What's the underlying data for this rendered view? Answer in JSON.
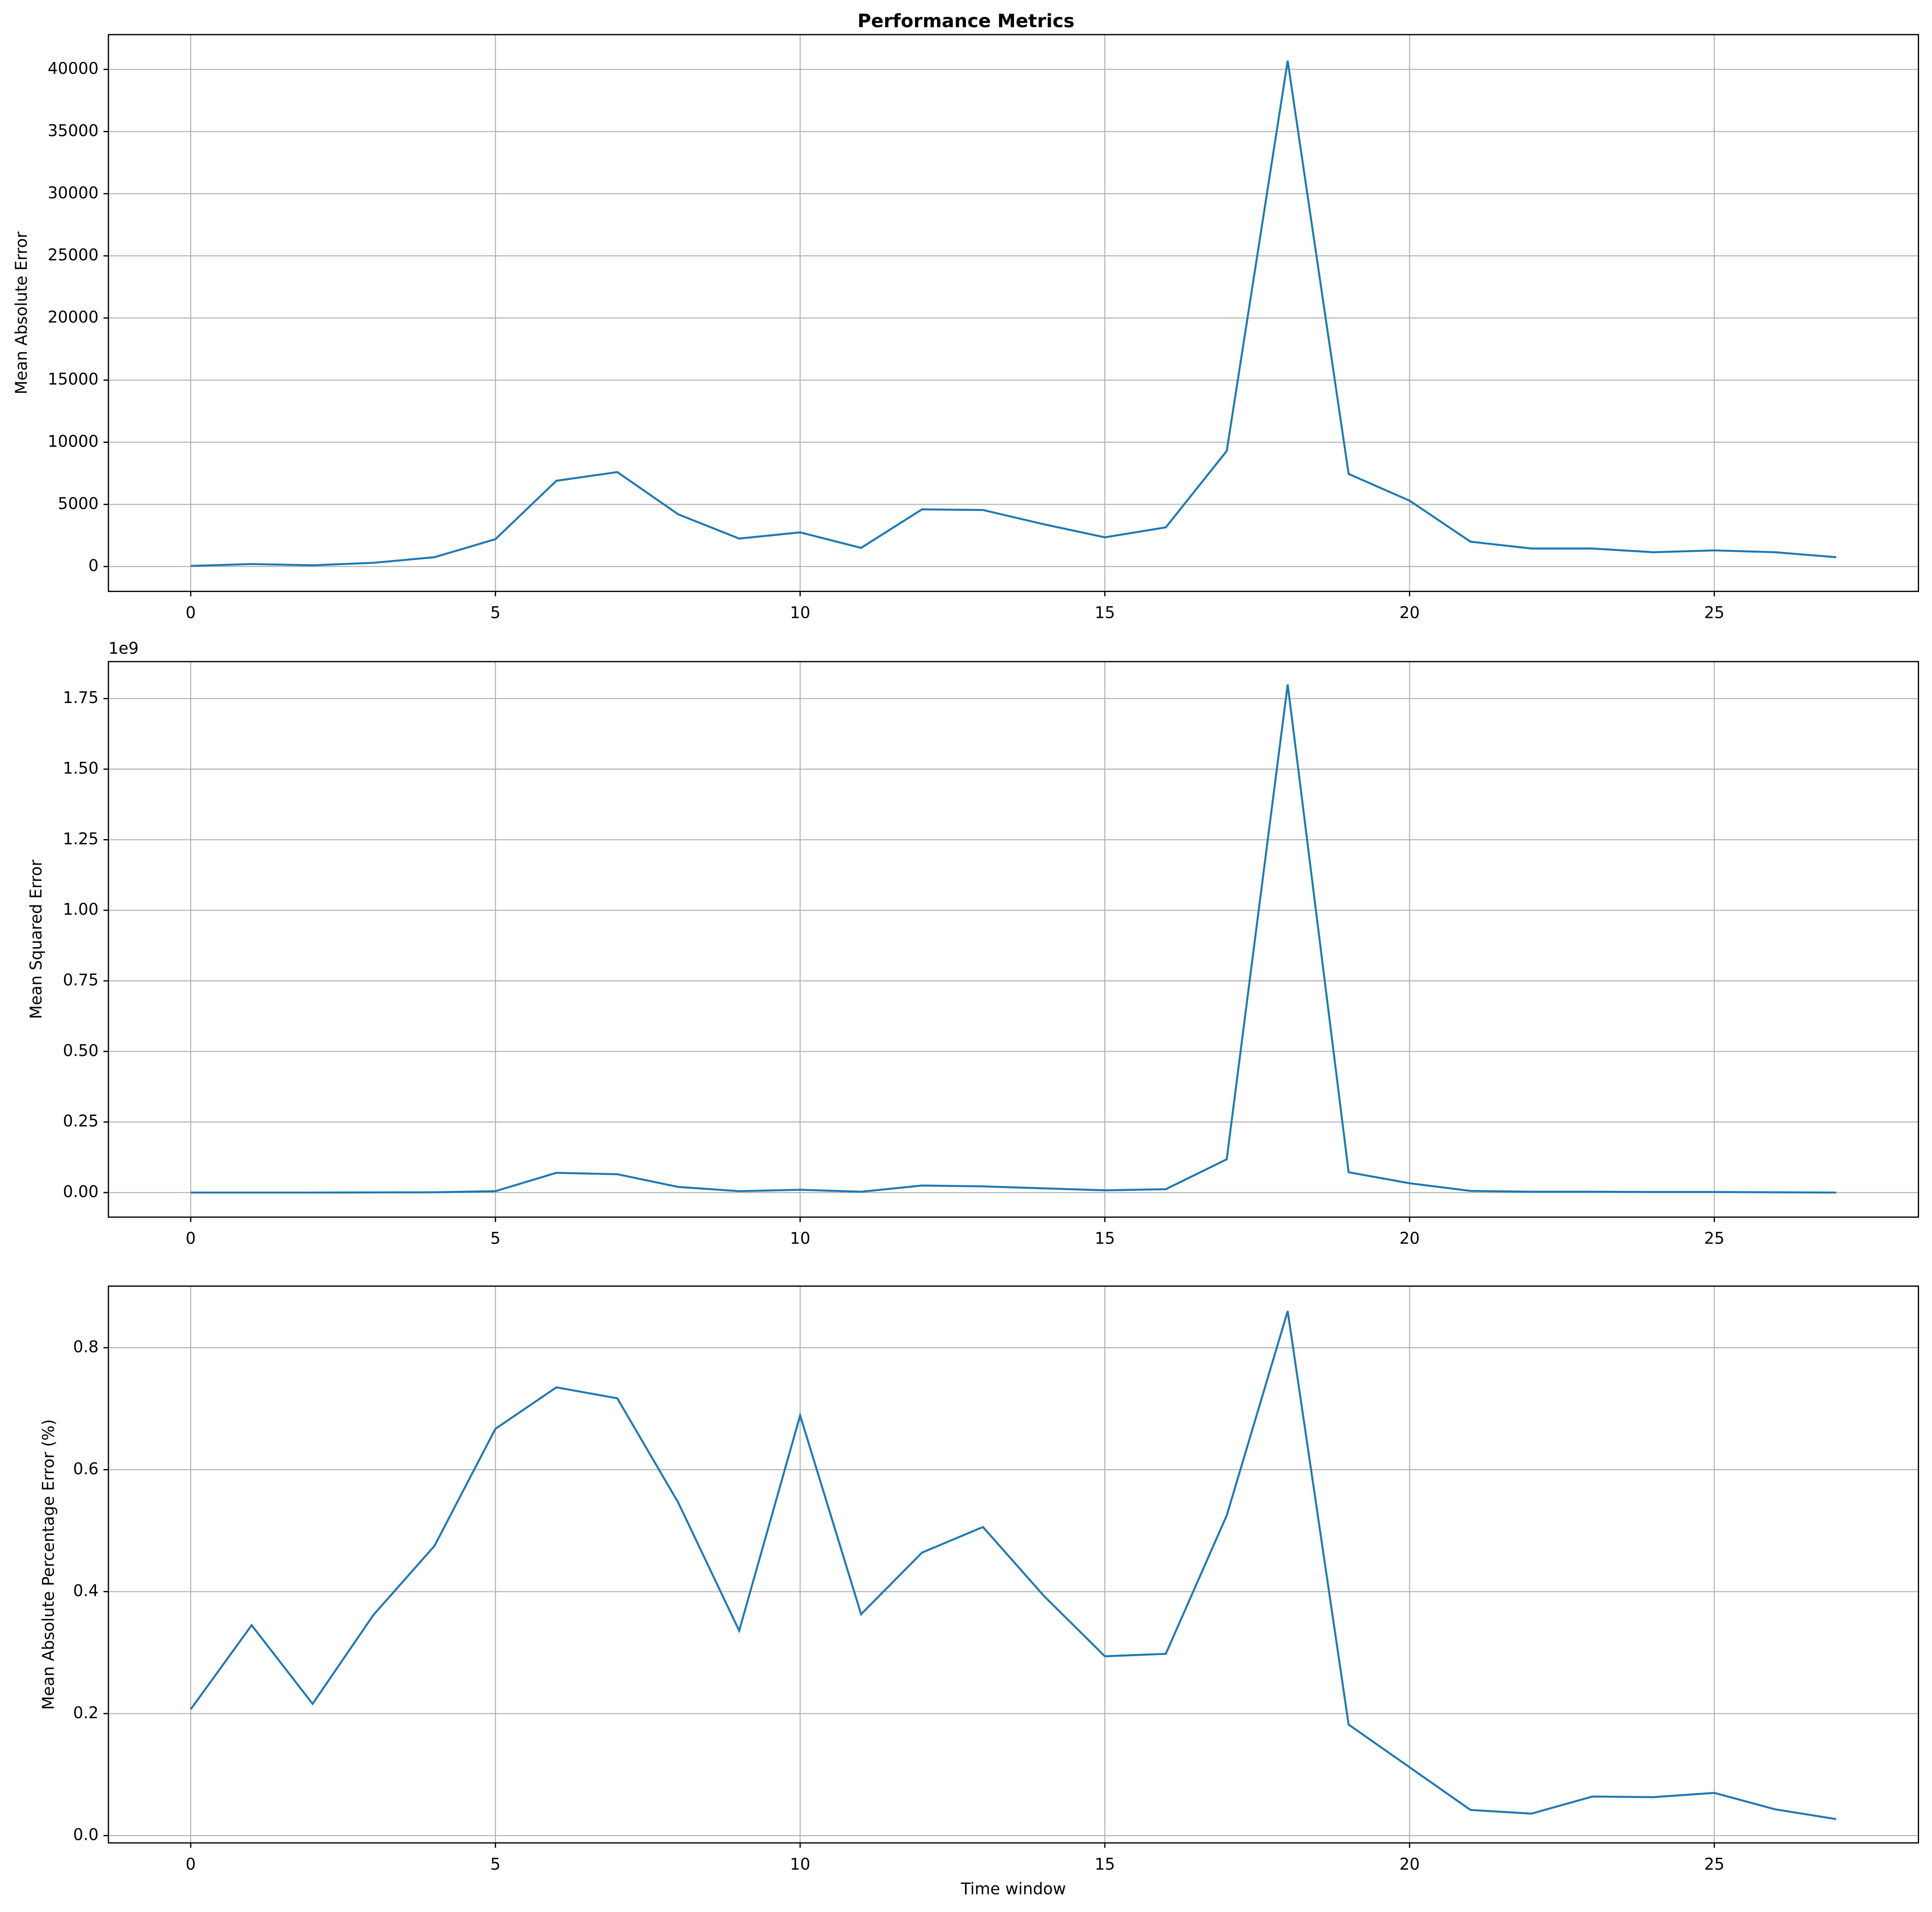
{
  "title": "Performance Metrics",
  "chart_data": [
    {
      "type": "line",
      "ylabel": "Mean Absolute Error",
      "x": [
        0,
        1,
        2,
        3,
        4,
        5,
        6,
        7,
        8,
        9,
        10,
        11,
        12,
        13,
        14,
        15,
        16,
        17,
        18,
        19,
        20,
        21,
        22,
        23,
        24,
        25,
        26,
        27
      ],
      "series": [
        {
          "color": "#1f77b4",
          "values": [
            50,
            200,
            100,
            300,
            750,
            2200,
            6900,
            7600,
            4200,
            2250,
            2750,
            1500,
            4600,
            4550,
            3400,
            2350,
            3150,
            9300,
            40700,
            7450,
            5300,
            2000,
            1450,
            1450,
            1150,
            1300,
            1150,
            750
          ]
        }
      ],
      "xlim": [
        -1.35,
        28.35
      ],
      "xticks": [
        0,
        5,
        10,
        15,
        20,
        25
      ],
      "ylim": [
        -2000,
        42800
      ],
      "yticks": [
        0,
        5000,
        10000,
        15000,
        20000,
        25000,
        30000,
        35000,
        40000
      ],
      "grid": true
    },
    {
      "type": "line",
      "ylabel": "Mean Squared Error",
      "offset_label": "1e9",
      "x": [
        0,
        1,
        2,
        3,
        4,
        5,
        6,
        7,
        8,
        9,
        10,
        11,
        12,
        13,
        14,
        15,
        16,
        17,
        18,
        19,
        20,
        21,
        22,
        23,
        24,
        25,
        26,
        27
      ],
      "series": [
        {
          "color": "#1f77b4",
          "values": [
            0,
            0,
            0,
            0.0005,
            0.001,
            0.005,
            0.07,
            0.065,
            0.02,
            0.005,
            0.01,
            0.003,
            0.025,
            0.022,
            0.015,
            0.008,
            0.012,
            0.118,
            1.8,
            0.072,
            0.033,
            0.006,
            0.003,
            0.003,
            0.002,
            0.002,
            0.001,
            0
          ]
        }
      ],
      "xlim": [
        -1.35,
        28.35
      ],
      "xticks": [
        0,
        5,
        10,
        15,
        20,
        25
      ],
      "ylim": [
        -0.087,
        1.881
      ],
      "yticks": [
        {
          "value": 0,
          "label": "0.00"
        },
        {
          "value": 0.25,
          "label": "0.25"
        },
        {
          "value": 0.5,
          "label": "0.50"
        },
        {
          "value": 0.75,
          "label": "0.75"
        },
        {
          "value": 1,
          "label": "1.00"
        },
        {
          "value": 1.25,
          "label": "1.25"
        },
        {
          "value": 1.5,
          "label": "1.50"
        },
        {
          "value": 1.75,
          "label": "1.75"
        }
      ],
      "grid": true
    },
    {
      "type": "line",
      "ylabel": "Mean Absolute Percentage Error (%)",
      "xlabel": "Time window",
      "x": [
        0,
        1,
        2,
        3,
        4,
        5,
        6,
        7,
        8,
        9,
        10,
        11,
        12,
        13,
        14,
        15,
        16,
        17,
        18,
        19,
        20,
        21,
        22,
        23,
        24,
        25,
        26,
        27
      ],
      "series": [
        {
          "color": "#1f77b4",
          "values": [
            0.207,
            0.345,
            0.216,
            0.362,
            0.475,
            0.667,
            0.735,
            0.717,
            0.546,
            0.336,
            0.689,
            0.363,
            0.464,
            0.506,
            0.393,
            0.294,
            0.298,
            0.525,
            0.86,
            0.182,
            0.112,
            0.042,
            0.036,
            0.064,
            0.063,
            0.07,
            0.043,
            0.027
          ]
        }
      ],
      "xlim": [
        -1.35,
        28.35
      ],
      "xticks": [
        0,
        5,
        10,
        15,
        20,
        25
      ],
      "ylim": [
        -0.012,
        0.901
      ],
      "yticks": [
        {
          "value": 0,
          "label": "0.0"
        },
        {
          "value": 0.2,
          "label": "0.2"
        },
        {
          "value": 0.4,
          "label": "0.4"
        },
        {
          "value": 0.6,
          "label": "0.6"
        },
        {
          "value": 0.8,
          "label": "0.8"
        }
      ],
      "grid": true
    }
  ]
}
